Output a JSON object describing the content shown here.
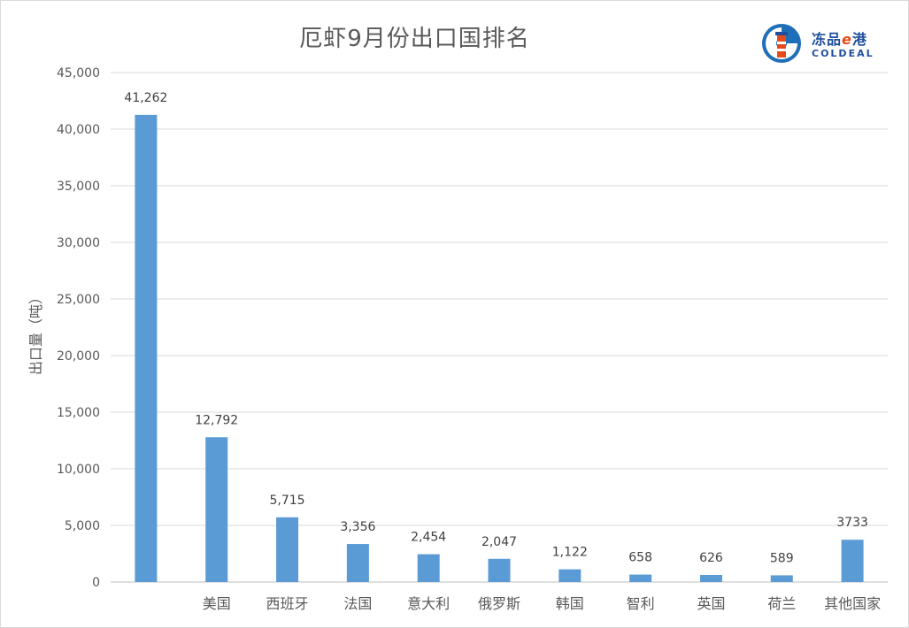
{
  "chart_data": {
    "type": "bar",
    "title": "厄虾9月份出口国排名",
    "ylabel": "出口量（吨）",
    "xlabel": "",
    "categories": [
      "",
      "美国",
      "西班牙",
      "法国",
      "意大利",
      "俄罗斯",
      "韩国",
      "智利",
      "英国",
      "荷兰",
      "其他国家"
    ],
    "values": [
      41262,
      12792,
      5715,
      3356,
      2454,
      2047,
      1122,
      658,
      626,
      589,
      3733
    ],
    "data_labels": [
      "41,262",
      "12,792",
      "5,715",
      "3,356",
      "2,454",
      "2,047",
      "1,122",
      "658",
      "626",
      "589",
      "3733"
    ],
    "ylim": [
      0,
      45000
    ],
    "yticks": [
      "0",
      "5,000",
      "10,000",
      "15,000",
      "20,000",
      "25,000",
      "30,000",
      "35,000",
      "40,000",
      "45,000"
    ],
    "grid": true,
    "bar_color": "#5b9bd5"
  },
  "logo": {
    "cn_prefix": "冻品",
    "cn_e": "e",
    "cn_suffix": "港",
    "en": "COLDEAL"
  }
}
